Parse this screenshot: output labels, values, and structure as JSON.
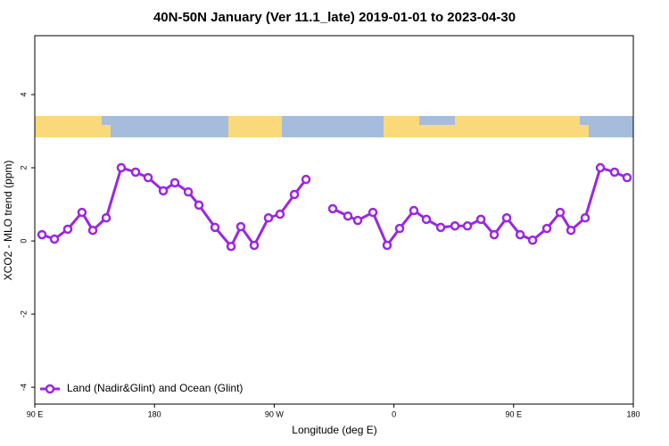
{
  "chart_data": {
    "type": "line",
    "title": "40N-50N January (Ver 11.1_late)   2019-01-01 to 2023-04-30",
    "x_label": "Longitude (deg E)",
    "y_label": "XCO2 - MLO trend (ppm)",
    "xlim": [
      90,
      540
    ],
    "ylim": [
      -4.46,
      5.61
    ],
    "xticks": [
      {
        "value": 90,
        "label": "90 E"
      },
      180,
      {
        "value": 270,
        "label": "90 W"
      },
      {
        "value": 360,
        "label": "0"
      },
      {
        "value": 450,
        "label": "90 E"
      },
      {
        "value": 540,
        "label": "180"
      }
    ],
    "yticks": [
      -4,
      -2,
      0,
      2,
      4
    ],
    "legend": "bottom-left",
    "x": [
      95.4,
      104.8,
      114.8,
      125.5,
      133.6,
      143.7,
      155,
      165.8,
      175.2,
      186.6,
      195.3,
      205.4,
      213.4,
      225.5,
      237.6,
      244.9,
      255,
      265.7,
      274.4,
      285.2,
      293.9,
      304,
      314,
      325.4,
      332.8,
      344.2,
      354.9,
      364.3,
      375,
      384.4,
      395.2,
      405.9,
      415.3,
      425.4,
      435.4,
      444.8,
      454.9,
      464.3,
      475,
      485,
      493.1,
      503.8,
      515.2,
      525.9,
      535.3
    ],
    "series": [
      {
        "name": "Land (Nadir&Glint) and Ocean (Glint)",
        "color": "#9b27e0",
        "values": [
          0.17,
          0.05,
          0.32,
          0.78,
          0.29,
          0.63,
          2.0,
          1.88,
          1.73,
          1.37,
          1.59,
          1.34,
          0.98,
          0.37,
          -0.15,
          0.39,
          -0.12,
          0.63,
          0.73,
          1.27,
          1.68,
          null,
          0.88,
          0.68,
          0.56,
          0.78,
          -0.12,
          0.34,
          0.83,
          0.59,
          0.37,
          0.41,
          0.41,
          0.59,
          0.17,
          0.63,
          0.17,
          0.02,
          0.34,
          0.78,
          0.29,
          0.63,
          2.0,
          1.88,
          1.73
        ]
      }
    ]
  }
}
